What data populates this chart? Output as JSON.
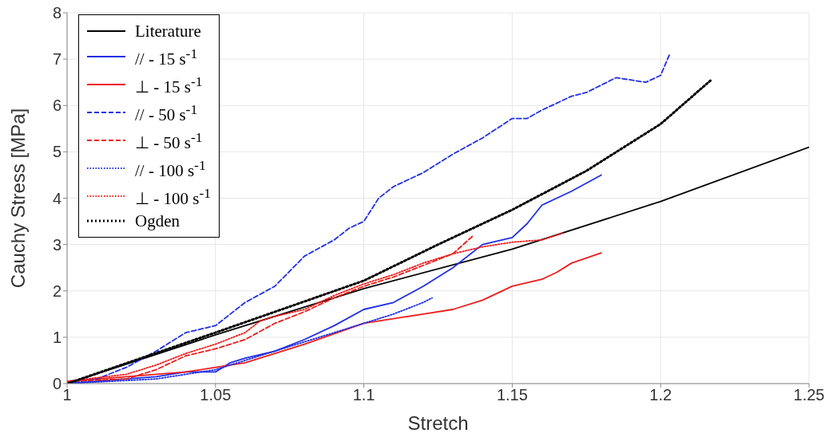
{
  "chart_data": {
    "type": "line",
    "xlabel": "Stretch",
    "ylabel": "Cauchy Stress [MPa]",
    "xlim": [
      1,
      1.25
    ],
    "xticks": [
      1,
      1.05,
      1.1,
      1.15,
      1.2,
      1.25
    ],
    "ylim": [
      0,
      8
    ],
    "yticks": [
      0,
      1,
      2,
      3,
      4,
      5,
      6,
      7,
      8
    ],
    "grid": true,
    "legend": "top left",
    "series": [
      {
        "name": "Literature",
        "color": "#000000",
        "line_style": "solid",
        "x": [
          1,
          1.05,
          1.1,
          1.15,
          1.2,
          1.25
        ],
        "values": [
          0,
          1.05,
          2.05,
          2.9,
          3.93,
          5.1
        ]
      },
      {
        "name": "// - 15 s$^{-1}$",
        "color": "#1f2fe6",
        "line_style": "solid",
        "x": [
          1,
          1.02,
          1.03,
          1.04,
          1.05,
          1.055,
          1.06,
          1.07,
          1.08,
          1.09,
          1.1,
          1.11,
          1.12,
          1.13,
          1.14,
          1.15,
          1.155,
          1.16,
          1.17,
          1.18
        ],
        "values": [
          0,
          0.1,
          0.15,
          0.25,
          0.25,
          0.45,
          0.55,
          0.7,
          0.95,
          1.25,
          1.6,
          1.75,
          2.1,
          2.5,
          3.0,
          3.15,
          3.45,
          3.85,
          4.15,
          4.5
        ]
      },
      {
        "name": "⊥ - 15 s$^{-1}$",
        "color": "#ee1c1c",
        "line_style": "solid",
        "x": [
          1,
          1.02,
          1.04,
          1.06,
          1.08,
          1.1,
          1.12,
          1.13,
          1.14,
          1.15,
          1.16,
          1.165,
          1.17,
          1.18
        ],
        "values": [
          0.05,
          0.15,
          0.25,
          0.45,
          0.85,
          1.3,
          1.5,
          1.6,
          1.8,
          2.1,
          2.25,
          2.4,
          2.6,
          2.82
        ]
      },
      {
        "name": "// - 50 s$^{-1}$",
        "color": "#1f2fe6",
        "line_style": "dashed",
        "x": [
          1,
          1.01,
          1.02,
          1.03,
          1.04,
          1.05,
          1.06,
          1.07,
          1.08,
          1.09,
          1.095,
          1.1,
          1.105,
          1.11,
          1.12,
          1.13,
          1.14,
          1.15,
          1.155,
          1.16,
          1.17,
          1.175,
          1.185,
          1.195,
          1.2,
          1.203
        ],
        "values": [
          0,
          0.1,
          0.35,
          0.7,
          1.1,
          1.25,
          1.75,
          2.1,
          2.75,
          3.1,
          3.35,
          3.5,
          4.0,
          4.25,
          4.55,
          4.95,
          5.3,
          5.72,
          5.72,
          5.9,
          6.2,
          6.28,
          6.6,
          6.5,
          6.65,
          7.1
        ]
      },
      {
        "name": "⊥ - 50 s$^{-1}$",
        "color": "#ee1c1c",
        "line_style": "dashed",
        "x": [
          1,
          1.02,
          1.03,
          1.04,
          1.05,
          1.06,
          1.07,
          1.08,
          1.09,
          1.1,
          1.11,
          1.12,
          1.13,
          1.137
        ],
        "values": [
          0.05,
          0.1,
          0.3,
          0.6,
          0.75,
          0.95,
          1.3,
          1.55,
          1.85,
          2.1,
          2.3,
          2.55,
          2.8,
          3.2
        ]
      },
      {
        "name": "// - 100 s$^{-1}$",
        "color": "#1f2fe6",
        "line_style": "dotted",
        "x": [
          1,
          1.03,
          1.05,
          1.06,
          1.07,
          1.08,
          1.09,
          1.1,
          1.11,
          1.12,
          1.123
        ],
        "values": [
          0,
          0.1,
          0.3,
          0.5,
          0.7,
          0.9,
          1.1,
          1.3,
          1.5,
          1.75,
          1.85
        ]
      },
      {
        "name": "⊥ - 100 s$^{-1}$",
        "color": "#ee1c1c",
        "line_style": "dotted",
        "x": [
          1,
          1.02,
          1.03,
          1.04,
          1.05,
          1.06,
          1.065,
          1.07,
          1.08,
          1.09,
          1.1,
          1.11,
          1.12,
          1.13,
          1.14,
          1.15,
          1.16,
          1.167
        ],
        "values": [
          0.05,
          0.2,
          0.4,
          0.65,
          0.85,
          1.1,
          1.35,
          1.45,
          1.6,
          1.9,
          2.15,
          2.35,
          2.6,
          2.8,
          2.95,
          3.05,
          3.1,
          3.25
        ]
      },
      {
        "name": "Ogden",
        "color": "#000000",
        "line_style": "dotted",
        "x": [
          1,
          1.05,
          1.1,
          1.125,
          1.15,
          1.175,
          1.2,
          1.217
        ],
        "values": [
          0,
          1.1,
          2.22,
          3.0,
          3.75,
          4.59,
          5.6,
          6.55
        ]
      }
    ]
  }
}
